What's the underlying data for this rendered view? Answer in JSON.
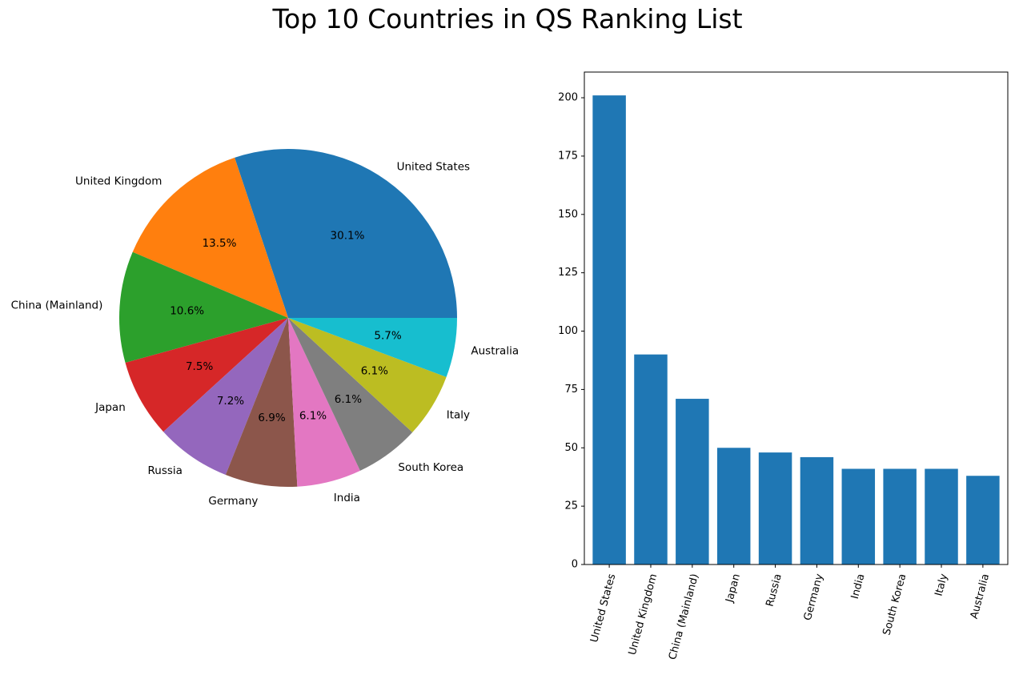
{
  "title": "Top 10 Countries in QS Ranking List",
  "chart_data": [
    {
      "type": "pie",
      "labels": [
        "United States",
        "United Kingdom",
        "China (Mainland)",
        "Japan",
        "Russia",
        "Germany",
        "India",
        "South Korea",
        "Italy",
        "Australia"
      ],
      "values": [
        201,
        90,
        71,
        50,
        48,
        46,
        41,
        41,
        41,
        38
      ],
      "percent_labels": [
        "30.1%",
        "13.5%",
        "10.6%",
        "7.5%",
        "7.2%",
        "6.9%",
        "6.1%",
        "6.1%",
        "6.1%",
        "5.7%"
      ],
      "colors": [
        "#1f77b4",
        "#ff7f0e",
        "#2ca02c",
        "#d62728",
        "#9467bd",
        "#8c564b",
        "#e377c2",
        "#7f7f7f",
        "#bcbd22",
        "#17becf"
      ],
      "start_angle_deg": 0,
      "direction": "counterclockwise"
    },
    {
      "type": "bar",
      "categories": [
        "United States",
        "United Kingdom",
        "China (Mainland)",
        "Japan",
        "Russia",
        "Germany",
        "India",
        "South Korea",
        "Italy",
        "Australia"
      ],
      "values": [
        201,
        90,
        71,
        50,
        48,
        46,
        41,
        41,
        41,
        38
      ],
      "color": "#1f77b4",
      "ylim": [
        0,
        211
      ],
      "yticks": [
        0,
        25,
        50,
        75,
        100,
        125,
        150,
        175,
        200
      ],
      "xtick_rotation_deg": -75,
      "grid": false
    }
  ]
}
